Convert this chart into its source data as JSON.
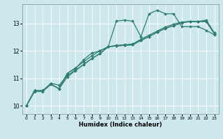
{
  "xlabel": "Humidex (Indice chaleur)",
  "bg_color": "#cce8ed",
  "line_color": "#2e7d6e",
  "grid_color": "#ffffff",
  "xlim": [
    -0.5,
    23.5
  ],
  "ylim": [
    9.7,
    13.7
  ],
  "yticks": [
    10,
    11,
    12,
    13
  ],
  "xticks": [
    0,
    1,
    2,
    3,
    4,
    5,
    6,
    7,
    8,
    9,
    10,
    11,
    12,
    13,
    14,
    15,
    16,
    17,
    18,
    19,
    20,
    21,
    22,
    23
  ],
  "s1_x": [
    0,
    1,
    2,
    3,
    4,
    5,
    6,
    7,
    8,
    9,
    10,
    11,
    12,
    13,
    14,
    15,
    16,
    17,
    18,
    19,
    20,
    21,
    22,
    23
  ],
  "s1_y": [
    10.0,
    10.55,
    10.55,
    10.82,
    10.75,
    11.1,
    11.3,
    11.5,
    11.72,
    11.9,
    12.15,
    13.08,
    13.12,
    13.08,
    12.52,
    13.35,
    13.48,
    13.35,
    13.35,
    12.88,
    12.88,
    12.88,
    12.75,
    12.58
  ],
  "s2_x": [
    0,
    1,
    2,
    3,
    4,
    5,
    6,
    7,
    8,
    9,
    10,
    11,
    12,
    13,
    14,
    15,
    16,
    17,
    18,
    19,
    20,
    21,
    22,
    23
  ],
  "s2_y": [
    10.0,
    10.55,
    10.55,
    10.78,
    10.62,
    11.05,
    11.28,
    11.5,
    11.72,
    11.9,
    12.15,
    12.18,
    12.2,
    12.22,
    12.38,
    12.52,
    12.68,
    12.82,
    12.92,
    13.02,
    13.07,
    13.07,
    13.07,
    12.62
  ],
  "s3_x": [
    0,
    1,
    2,
    3,
    4,
    5,
    6,
    7,
    8,
    9,
    10,
    11,
    12,
    13,
    14,
    15,
    16,
    17,
    18,
    19,
    20,
    21,
    22,
    23
  ],
  "s3_y": [
    10.0,
    10.55,
    10.55,
    10.78,
    10.62,
    11.18,
    11.38,
    11.6,
    11.82,
    12.0,
    12.15,
    12.18,
    12.2,
    12.22,
    12.38,
    12.52,
    12.68,
    12.82,
    12.92,
    13.02,
    13.07,
    13.07,
    13.07,
    12.62
  ],
  "s4_x": [
    0,
    1,
    2,
    3,
    4,
    5,
    6,
    7,
    8,
    9,
    10,
    11,
    12,
    13,
    14,
    15,
    16,
    17,
    18,
    19,
    20,
    21,
    22,
    23
  ],
  "s4_y": [
    10.0,
    10.52,
    10.52,
    10.78,
    10.62,
    11.18,
    11.35,
    11.68,
    11.92,
    12.0,
    12.15,
    12.2,
    12.22,
    12.25,
    12.42,
    12.57,
    12.72,
    12.87,
    12.97,
    13.05,
    13.07,
    13.07,
    13.12,
    12.65
  ]
}
